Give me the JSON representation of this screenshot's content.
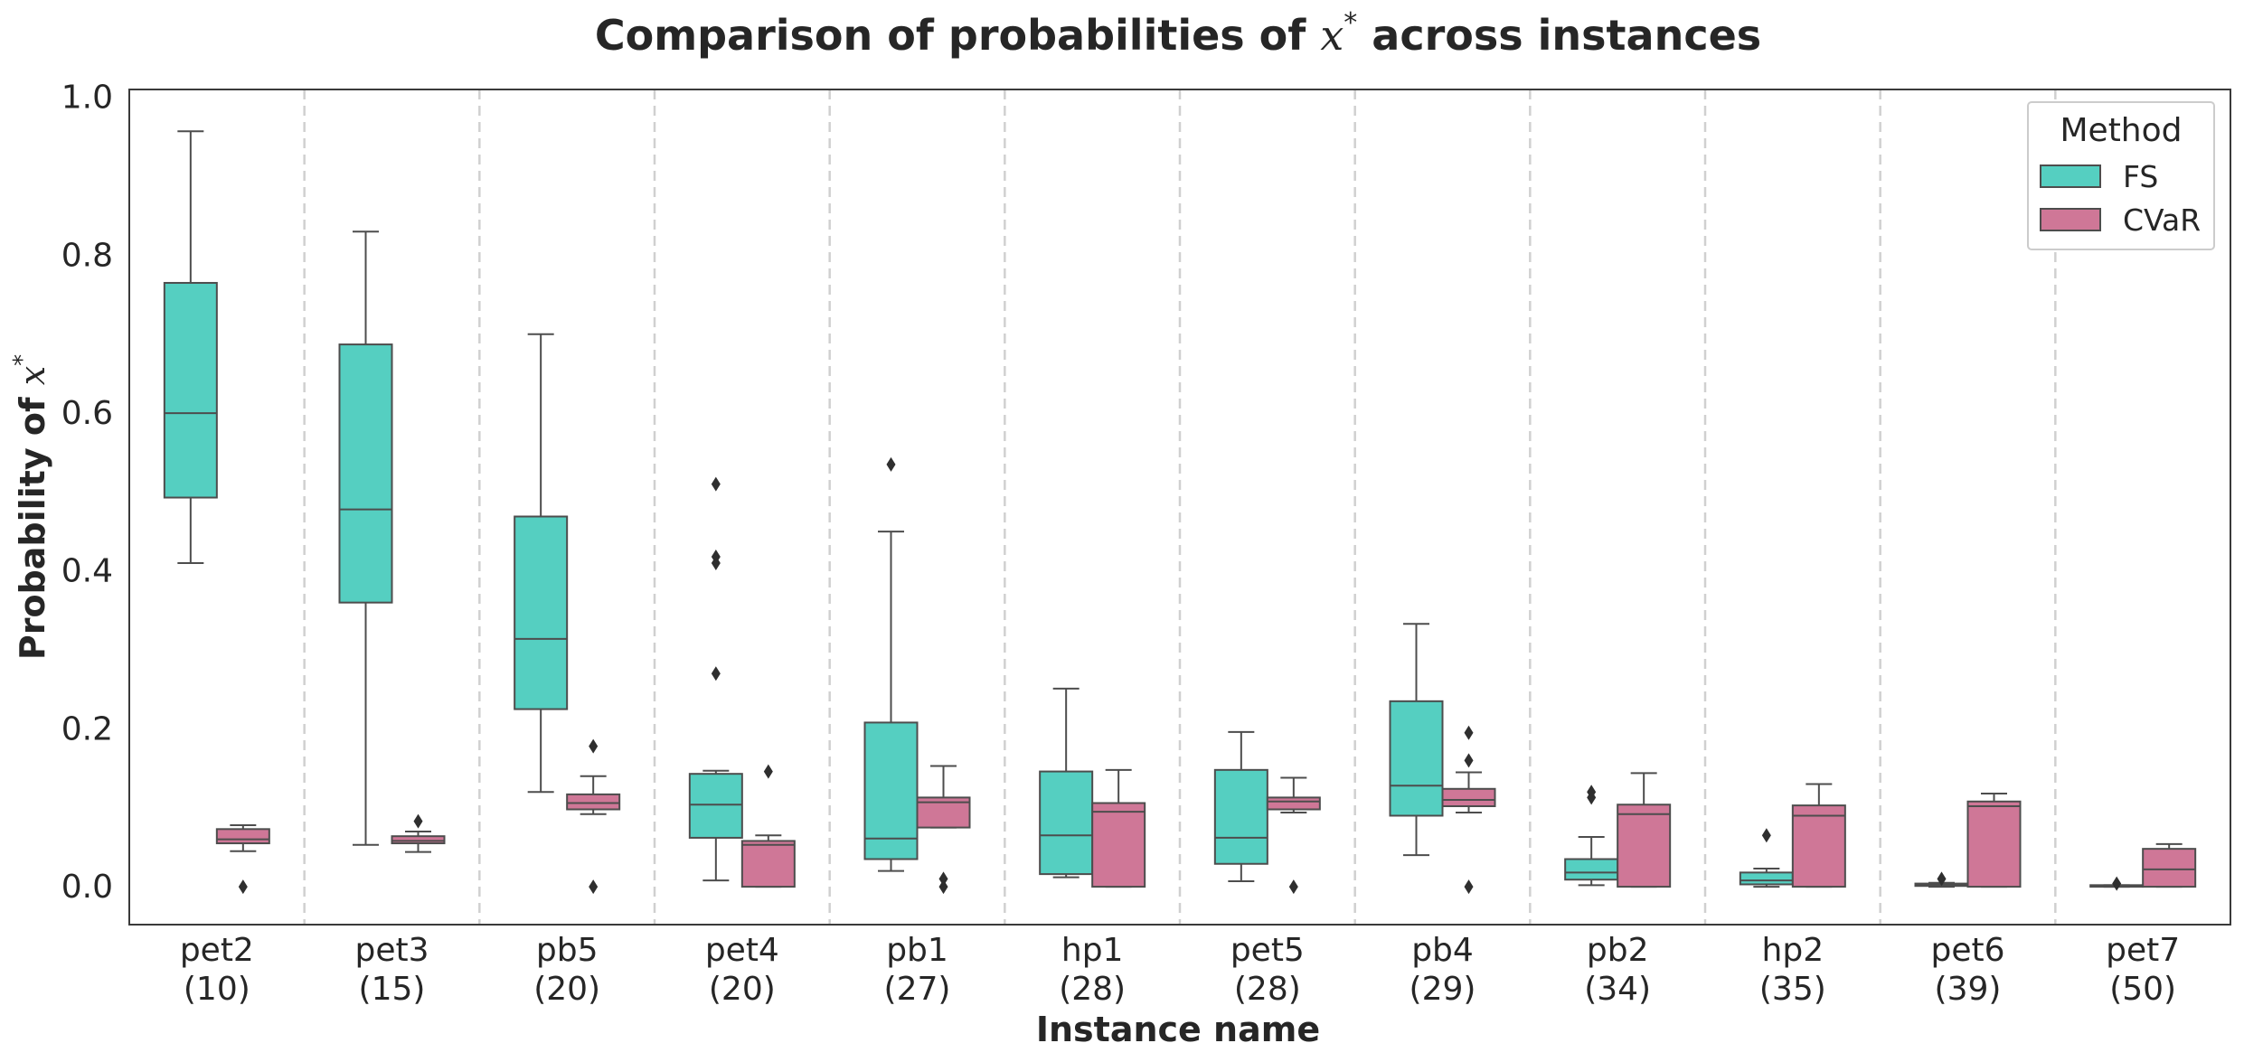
{
  "chart_data": {
    "type": "box",
    "title_prefix": "Comparison of probabilities of ",
    "title_var": "x",
    "title_sup": "*",
    "title_suffix": " across instances",
    "xlabel": "Instance name",
    "ylabel_prefix": "Probability of ",
    "ylabel_var": "x",
    "ylabel_sup": "*",
    "ylim": [
      -0.048,
      1.01
    ],
    "yticks": [
      0.0,
      0.2,
      0.4,
      0.6,
      0.8,
      1.0
    ],
    "ytick_labels": [
      "0.0",
      "0.2",
      "0.4",
      "0.6",
      "0.8",
      "1.0"
    ],
    "grid": false,
    "category_separators": true,
    "legend": {
      "title": "Method",
      "position": "top-right"
    },
    "categories": [
      {
        "name": "pet2",
        "count": "(10)"
      },
      {
        "name": "pet3",
        "count": "(15)"
      },
      {
        "name": "pb5",
        "count": "(20)"
      },
      {
        "name": "pet4",
        "count": "(20)"
      },
      {
        "name": "pb1",
        "count": "(27)"
      },
      {
        "name": "hp1",
        "count": "(28)"
      },
      {
        "name": "pet5",
        "count": "(28)"
      },
      {
        "name": "pb4",
        "count": "(29)"
      },
      {
        "name": "pb2",
        "count": "(34)"
      },
      {
        "name": "hp2",
        "count": "(35)"
      },
      {
        "name": "pet6",
        "count": "(39)"
      },
      {
        "name": "pet7",
        "count": "(50)"
      }
    ],
    "series": [
      {
        "name": "FS",
        "color": "#55cfc1",
        "boxes": [
          {
            "whislo": 0.41,
            "q1": 0.493,
            "med": 0.6,
            "q3": 0.765,
            "whishi": 0.957,
            "fliers": []
          },
          {
            "whislo": 0.053,
            "q1": 0.36,
            "med": 0.478,
            "q3": 0.687,
            "whishi": 0.83,
            "fliers": []
          },
          {
            "whislo": 0.12,
            "q1": 0.225,
            "med": 0.314,
            "q3": 0.469,
            "whishi": 0.7,
            "fliers": []
          },
          {
            "whislo": 0.008,
            "q1": 0.062,
            "med": 0.104,
            "q3": 0.143,
            "whishi": 0.147,
            "fliers": [
              0.27,
              0.41,
              0.418,
              0.51
            ]
          },
          {
            "whislo": 0.02,
            "q1": 0.035,
            "med": 0.061,
            "q3": 0.208,
            "whishi": 0.45,
            "fliers": [
              0.535
            ]
          },
          {
            "whislo": 0.012,
            "q1": 0.016,
            "med": 0.065,
            "q3": 0.146,
            "whishi": 0.251,
            "fliers": []
          },
          {
            "whislo": 0.007,
            "q1": 0.029,
            "med": 0.062,
            "q3": 0.148,
            "whishi": 0.196,
            "fliers": []
          },
          {
            "whislo": 0.04,
            "q1": 0.09,
            "med": 0.128,
            "q3": 0.235,
            "whishi": 0.333,
            "fliers": []
          },
          {
            "whislo": 0.002,
            "q1": 0.009,
            "med": 0.018,
            "q3": 0.035,
            "whishi": 0.063,
            "fliers": [
              0.113,
              0.12
            ]
          },
          {
            "whislo": 0.0,
            "q1": 0.003,
            "med": 0.008,
            "q3": 0.018,
            "whishi": 0.023,
            "fliers": [
              0.065
            ]
          },
          {
            "whislo": 0.0,
            "q1": 0.001,
            "med": 0.002,
            "q3": 0.004,
            "whishi": 0.005,
            "fliers": [
              0.01
            ]
          },
          {
            "whislo": 0.0,
            "q1": 0.0,
            "med": 0.001,
            "q3": 0.002,
            "whishi": 0.002,
            "fliers": [
              0.004
            ]
          }
        ]
      },
      {
        "name": "CVaR",
        "color": "#cf7797",
        "boxes": [
          {
            "whislo": 0.045,
            "q1": 0.055,
            "med": 0.06,
            "q3": 0.073,
            "whishi": 0.078,
            "fliers": [
              0.0
            ]
          },
          {
            "whislo": 0.044,
            "q1": 0.055,
            "med": 0.058,
            "q3": 0.064,
            "whishi": 0.07,
            "fliers": [
              0.083
            ]
          },
          {
            "whislo": 0.092,
            "q1": 0.098,
            "med": 0.106,
            "q3": 0.117,
            "whishi": 0.14,
            "fliers": [
              0.0,
              0.178
            ]
          },
          {
            "whislo": 0.0,
            "q1": 0.0,
            "med": 0.053,
            "q3": 0.058,
            "whishi": 0.065,
            "fliers": [
              0.146
            ]
          },
          {
            "whislo": 0.075,
            "q1": 0.075,
            "med": 0.107,
            "q3": 0.113,
            "whishi": 0.153,
            "fliers": [
              0.0,
              0.01
            ]
          },
          {
            "whislo": 0.0,
            "q1": 0.0,
            "med": 0.095,
            "q3": 0.106,
            "whishi": 0.148,
            "fliers": []
          },
          {
            "whislo": 0.094,
            "q1": 0.098,
            "med": 0.108,
            "q3": 0.113,
            "whishi": 0.138,
            "fliers": [
              0.0
            ]
          },
          {
            "whislo": 0.094,
            "q1": 0.102,
            "med": 0.11,
            "q3": 0.124,
            "whishi": 0.145,
            "fliers": [
              0.0,
              0.16,
              0.195
            ]
          },
          {
            "whislo": 0.0,
            "q1": 0.0,
            "med": 0.092,
            "q3": 0.104,
            "whishi": 0.144,
            "fliers": []
          },
          {
            "whislo": 0.0,
            "q1": 0.0,
            "med": 0.09,
            "q3": 0.103,
            "whishi": 0.13,
            "fliers": []
          },
          {
            "whislo": 0.0,
            "q1": 0.0,
            "med": 0.102,
            "q3": 0.108,
            "whishi": 0.118,
            "fliers": []
          },
          {
            "whislo": 0.0,
            "q1": 0.0,
            "med": 0.022,
            "q3": 0.048,
            "whishi": 0.054,
            "fliers": []
          }
        ]
      }
    ]
  }
}
